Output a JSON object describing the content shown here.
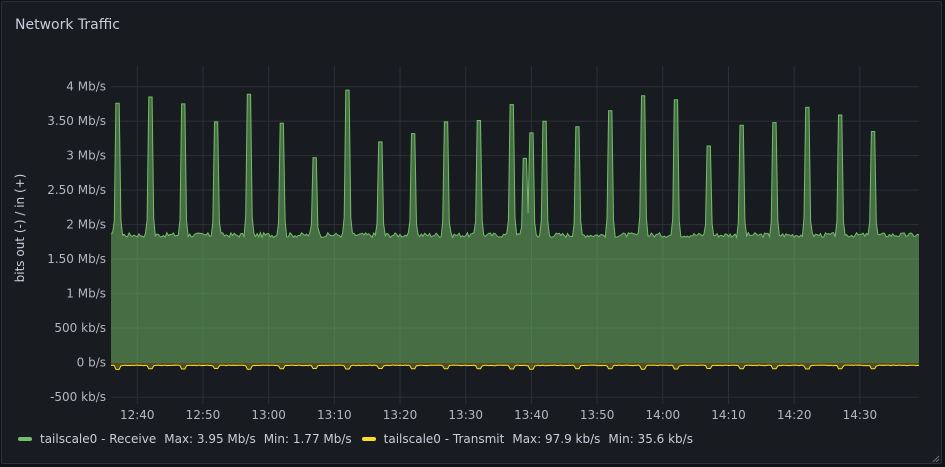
{
  "panel": {
    "title": "Network Traffic"
  },
  "colors": {
    "receive": "#73bf69",
    "transmit": "#fade2a",
    "grid": "#2d3038"
  },
  "chart_data": {
    "type": "area",
    "ylabel": "bits out (-) / in (+)",
    "ylim": [
      -600,
      4300
    ],
    "yticks": [
      {
        "value": 4000,
        "label": "4 Mb/s"
      },
      {
        "value": 3500,
        "label": "3.50 Mb/s"
      },
      {
        "value": 3000,
        "label": "3 Mb/s"
      },
      {
        "value": 2500,
        "label": "2.50 Mb/s"
      },
      {
        "value": 2000,
        "label": "2 Mb/s"
      },
      {
        "value": 1500,
        "label": "1.50 Mb/s"
      },
      {
        "value": 1000,
        "label": "1 Mb/s"
      },
      {
        "value": 500,
        "label": "500 kb/s"
      },
      {
        "value": 0,
        "label": "0 b/s"
      },
      {
        "value": -500,
        "label": "-500 kb/s"
      }
    ],
    "xlim": [
      "12:36",
      "14:39"
    ],
    "xticks": [
      "12:40",
      "12:50",
      "13:00",
      "13:10",
      "13:20",
      "13:30",
      "13:40",
      "13:50",
      "14:00",
      "14:10",
      "14:20",
      "14:30"
    ],
    "grid": true,
    "legend_position": "bottom-left",
    "series": [
      {
        "name": "tailscale0 - Receive",
        "color": "#73bf69",
        "baseline_kbps": 1850,
        "max_label": "Max: 3.95 Mb/s",
        "min_label": "Min: 1.77 Mb/s",
        "spikes": [
          [
            "12:37",
            3760
          ],
          [
            "12:42",
            3850
          ],
          [
            "12:47",
            3750
          ],
          [
            "12:52",
            3490
          ],
          [
            "12:57",
            3890
          ],
          [
            "13:02",
            3470
          ],
          [
            "13:07",
            2970
          ],
          [
            "13:12",
            3950
          ],
          [
            "13:17",
            3200
          ],
          [
            "13:22",
            3320
          ],
          [
            "13:27",
            3490
          ],
          [
            "13:32",
            3510
          ],
          [
            "13:37",
            3740
          ],
          [
            "13:39",
            2960
          ],
          [
            "13:40",
            3330
          ],
          [
            "13:42",
            3500
          ],
          [
            "13:47",
            3420
          ],
          [
            "13:52",
            3650
          ],
          [
            "13:57",
            3870
          ],
          [
            "14:02",
            3810
          ],
          [
            "14:07",
            3140
          ],
          [
            "14:12",
            3440
          ],
          [
            "14:17",
            3480
          ],
          [
            "14:22",
            3700
          ],
          [
            "14:27",
            3590
          ],
          [
            "14:32",
            3350
          ]
        ]
      },
      {
        "name": "tailscale0 - Transmit",
        "color": "#fade2a",
        "baseline_kbps": -40,
        "max_label": "Max: 97.9 kb/s",
        "min_label": "Min: 35.6 kb/s",
        "spikes": [
          [
            "12:37",
            -98
          ],
          [
            "12:42",
            -90
          ],
          [
            "12:47",
            -92
          ],
          [
            "12:52",
            -85
          ],
          [
            "12:57",
            -95
          ],
          [
            "13:02",
            -88
          ],
          [
            "13:07",
            -85
          ],
          [
            "13:12",
            -93
          ],
          [
            "13:17",
            -86
          ],
          [
            "13:22",
            -88
          ],
          [
            "13:27",
            -90
          ],
          [
            "13:32",
            -88
          ],
          [
            "13:37",
            -92
          ],
          [
            "13:40",
            -95
          ],
          [
            "13:47",
            -88
          ],
          [
            "13:52",
            -90
          ],
          [
            "13:57",
            -95
          ],
          [
            "14:02",
            -92
          ],
          [
            "14:07",
            -86
          ],
          [
            "14:12",
            -88
          ],
          [
            "14:17",
            -90
          ],
          [
            "14:22",
            -92
          ],
          [
            "14:27",
            -90
          ],
          [
            "14:32",
            -88
          ]
        ]
      }
    ]
  }
}
